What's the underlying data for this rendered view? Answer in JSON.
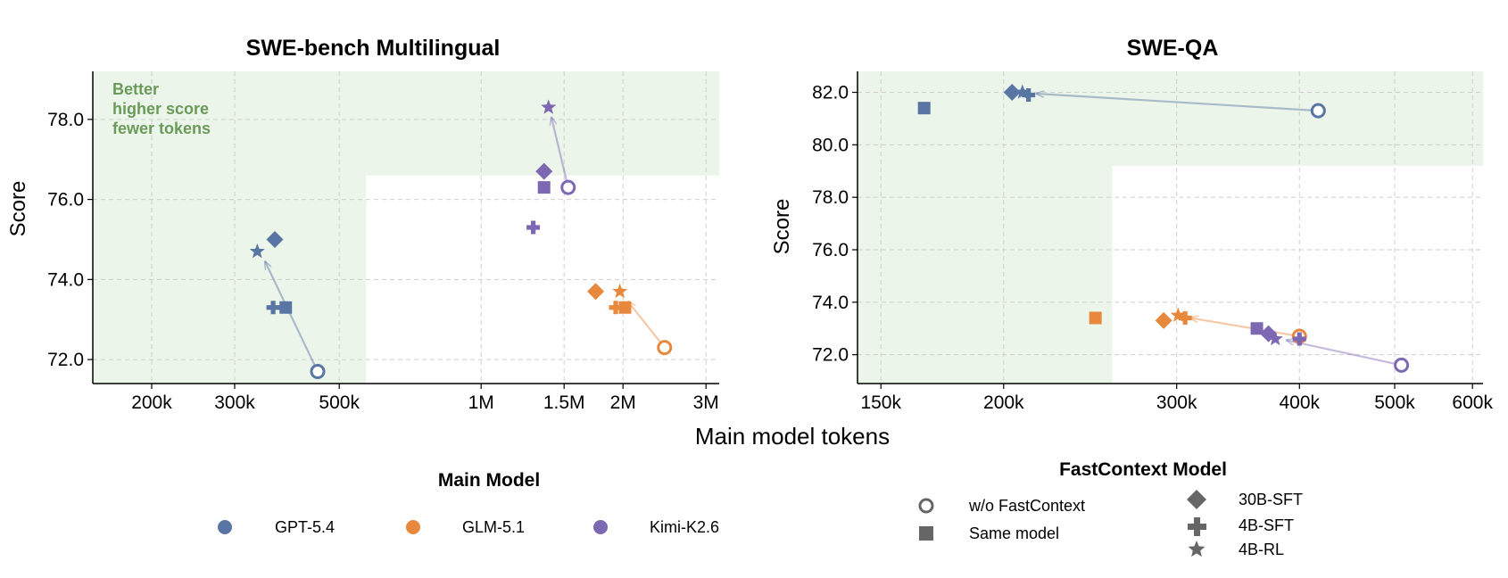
{
  "xlabel_shared": "Main model tokens",
  "colors": {
    "GPT-5.4": "#5975a4",
    "GLM-5.1": "#e8883c",
    "Kimi-K2.6": "#7c68b3",
    "better_region": "#e6f1e3",
    "better_text": "#6a9b5a",
    "legend_gray": "#666666"
  },
  "legends": {
    "main_model": {
      "title": "Main Model",
      "items": [
        "GPT-5.4",
        "GLM-5.1",
        "Kimi-K2.6"
      ]
    },
    "fastcontext": {
      "title": "FastContext Model",
      "col1": [
        "w/o FastContext",
        "Same model"
      ],
      "col2": [
        "30B-SFT",
        "4B-SFT",
        "4B-RL"
      ]
    }
  },
  "chart_data": [
    {
      "type": "scatter",
      "title": "SWE-bench Multilingual",
      "xlabel": "Main model tokens",
      "ylabel": "Score",
      "xscale": "log",
      "xlim": [
        150000,
        3200000
      ],
      "ylim": [
        71.4,
        79.2
      ],
      "xticks": [
        200000,
        300000,
        500000,
        1000000,
        1500000,
        2000000,
        3000000
      ],
      "xtick_labels": [
        "200k",
        "300k",
        "500k",
        "1M",
        "1.5M",
        "2M",
        "3M"
      ],
      "yticks": [
        72.0,
        74.0,
        76.0,
        78.0
      ],
      "ytick_labels": [
        "72.0",
        "74.0",
        "76.0",
        "78.0"
      ],
      "grid": true,
      "better_text": [
        "Better",
        "higher score",
        "fewer tokens"
      ],
      "better_region": {
        "x_max": 570000,
        "y_min": 76.6
      },
      "series": [
        {
          "name": "GPT-5.4",
          "points": [
            {
              "marker": "w/o FastContext",
              "x": 450000,
              "y": 71.7
            },
            {
              "marker": "Same model",
              "x": 385000,
              "y": 73.3
            },
            {
              "marker": "4B-SFT",
              "x": 362000,
              "y": 73.3
            },
            {
              "marker": "30B-SFT",
              "x": 365000,
              "y": 75.0
            },
            {
              "marker": "4B-RL",
              "x": 335000,
              "y": 74.7
            }
          ],
          "arrow": {
            "from": [
              450000,
              71.7
            ],
            "to": [
              348000,
              74.45
            ]
          }
        },
        {
          "name": "GLM-5.1",
          "points": [
            {
              "marker": "w/o FastContext",
              "x": 2450000,
              "y": 72.3
            },
            {
              "marker": "Same model",
              "x": 2020000,
              "y": 73.3
            },
            {
              "marker": "4B-SFT",
              "x": 1930000,
              "y": 73.3
            },
            {
              "marker": "30B-SFT",
              "x": 1750000,
              "y": 73.7
            },
            {
              "marker": "4B-RL",
              "x": 1970000,
              "y": 73.7
            }
          ],
          "arrow": {
            "from": [
              2450000,
              72.3
            ],
            "to": [
              2050000,
              73.45
            ]
          }
        },
        {
          "name": "Kimi-K2.6",
          "points": [
            {
              "marker": "w/o FastContext",
              "x": 1530000,
              "y": 76.3
            },
            {
              "marker": "Same model",
              "x": 1360000,
              "y": 76.3
            },
            {
              "marker": "4B-SFT",
              "x": 1290000,
              "y": 75.3
            },
            {
              "marker": "30B-SFT",
              "x": 1360000,
              "y": 76.7
            },
            {
              "marker": "4B-RL",
              "x": 1390000,
              "y": 78.3
            }
          ],
          "arrow": {
            "from": [
              1530000,
              76.3
            ],
            "to": [
              1410000,
              78.05
            ]
          }
        }
      ]
    },
    {
      "type": "scatter",
      "title": "SWE-QA",
      "xlabel": "Main model tokens",
      "ylabel": "Score",
      "xscale": "log",
      "xlim": [
        142000,
        615000
      ],
      "ylim": [
        70.9,
        82.8
      ],
      "xticks": [
        150000,
        200000,
        300000,
        400000,
        500000,
        600000
      ],
      "xtick_labels": [
        "150k",
        "200k",
        "300k",
        "400k",
        "500k",
        "600k"
      ],
      "yticks": [
        72.0,
        74.0,
        76.0,
        78.0,
        80.0,
        82.0
      ],
      "ytick_labels": [
        "72.0",
        "74.0",
        "76.0",
        "78.0",
        "80.0",
        "82.0"
      ],
      "grid": true,
      "better_region": {
        "x_max": 258000,
        "y_min": 79.2
      },
      "series": [
        {
          "name": "GPT-5.4",
          "points": [
            {
              "marker": "w/o FastContext",
              "x": 418000,
              "y": 81.3
            },
            {
              "marker": "Same model",
              "x": 166000,
              "y": 81.4
            },
            {
              "marker": "4B-SFT",
              "x": 212000,
              "y": 81.9
            },
            {
              "marker": "30B-SFT",
              "x": 204000,
              "y": 82.0
            },
            {
              "marker": "4B-RL",
              "x": 209000,
              "y": 82.0
            }
          ],
          "arrow": {
            "from": [
              418000,
              81.3
            ],
            "to": [
              216000,
              81.95
            ]
          }
        },
        {
          "name": "GLM-5.1",
          "points": [
            {
              "marker": "w/o FastContext",
              "x": 400000,
              "y": 72.7
            },
            {
              "marker": "Same model",
              "x": 248000,
              "y": 73.4
            },
            {
              "marker": "4B-SFT",
              "x": 306000,
              "y": 73.4
            },
            {
              "marker": "30B-SFT",
              "x": 291000,
              "y": 73.3
            },
            {
              "marker": "4B-RL",
              "x": 301000,
              "y": 73.5
            }
          ],
          "arrow": {
            "from": [
              400000,
              72.7
            ],
            "to": [
              310000,
              73.4
            ]
          }
        },
        {
          "name": "Kimi-K2.6",
          "points": [
            {
              "marker": "w/o FastContext",
              "x": 508000,
              "y": 71.6
            },
            {
              "marker": "Same model",
              "x": 362000,
              "y": 73.0
            },
            {
              "marker": "4B-SFT",
              "x": 400000,
              "y": 72.6
            },
            {
              "marker": "30B-SFT",
              "x": 372000,
              "y": 72.8
            },
            {
              "marker": "4B-RL",
              "x": 378000,
              "y": 72.6
            }
          ],
          "arrow": {
            "from": [
              508000,
              71.6
            ],
            "to": [
              388000,
              72.55
            ]
          }
        }
      ]
    }
  ]
}
